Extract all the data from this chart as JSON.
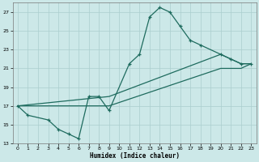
{
  "xlabel": "Humidex (Indice chaleur)",
  "bg_color": "#cce8e8",
  "grid_color": "#aacece",
  "line_color": "#1e6b5e",
  "xlim": [
    -0.5,
    23.5
  ],
  "ylim": [
    13,
    28
  ],
  "yticks": [
    13,
    15,
    17,
    19,
    21,
    23,
    25,
    27
  ],
  "xticks": [
    0,
    1,
    2,
    3,
    4,
    5,
    6,
    7,
    8,
    9,
    10,
    11,
    12,
    13,
    14,
    15,
    16,
    17,
    18,
    19,
    20,
    21,
    22,
    23
  ],
  "line1_x": [
    0,
    1,
    3,
    4,
    5,
    6,
    7,
    8,
    9,
    11,
    12,
    13,
    14,
    15,
    16,
    17,
    18,
    20,
    21,
    22,
    23
  ],
  "line1_y": [
    17,
    16,
    15.5,
    14.5,
    14,
    13.5,
    18,
    18,
    16.5,
    21.5,
    22.5,
    26.5,
    27.5,
    27,
    25.5,
    24,
    23.5,
    22.5,
    22,
    21.5,
    21.5
  ],
  "line2_x": [
    0,
    9,
    20,
    21,
    22,
    23
  ],
  "line2_y": [
    17,
    18,
    22.5,
    22,
    21.5,
    21.5
  ],
  "line3_x": [
    0,
    9,
    20,
    21,
    22,
    23
  ],
  "line3_y": [
    17,
    17,
    21,
    21,
    21,
    21.5
  ]
}
